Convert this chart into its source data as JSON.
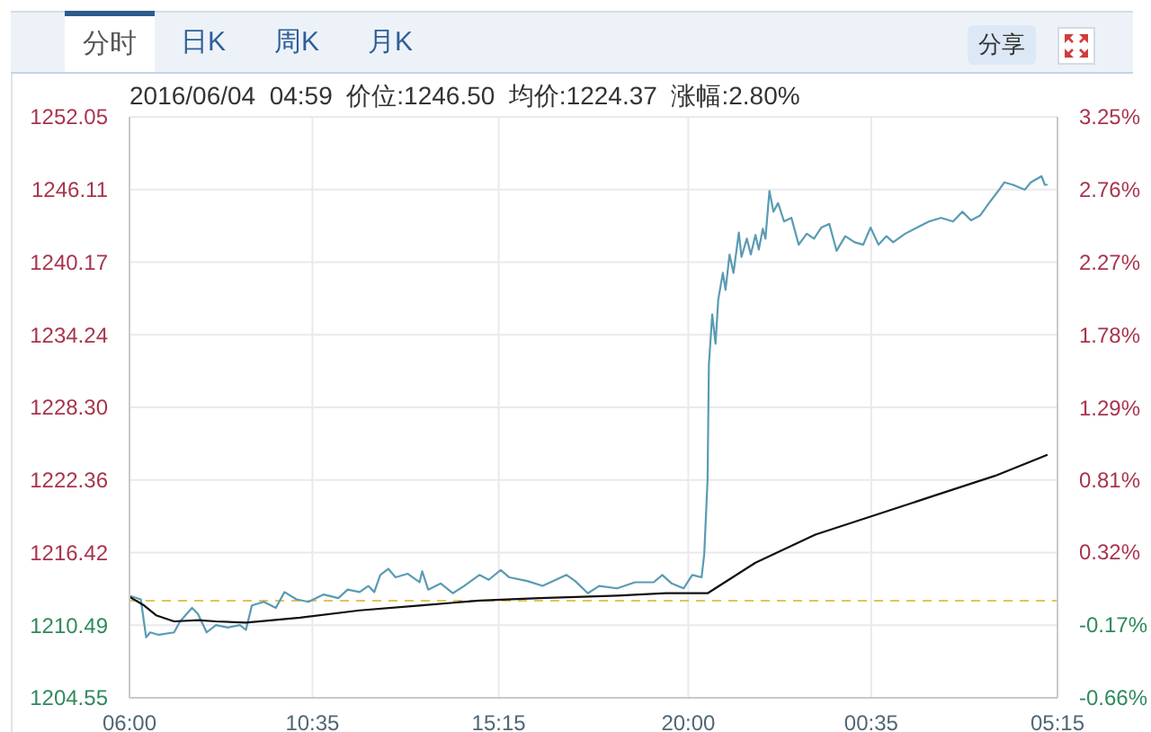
{
  "chart_data": {
    "type": "line",
    "subtitle": "2016/06/04  04:59  价位:1246.50  均价:1224.37  涨幅:2.80%",
    "annotations": [
      "分时",
      "日K",
      "周K",
      "月K",
      "分享"
    ],
    "xlim": [
      "2016-06-03T06:00",
      "2016-06-04T05:15"
    ],
    "xticks": [
      {
        "value": "2016-06-03T06:00",
        "label": "06:00"
      },
      {
        "value": "2016-06-03T10:35",
        "label": "10:35"
      },
      {
        "value": "2016-06-03T15:15",
        "label": "15:15"
      },
      {
        "value": "2016-06-03T20:00",
        "label": "20:00"
      },
      {
        "value": "2016-06-04T00:35",
        "label": "00:35"
      },
      {
        "value": "2016-06-04T05:15",
        "label": "05:15"
      }
    ],
    "ylim": [
      1204.55,
      1252.05
    ],
    "yticks": [
      1204.55,
      1210.49,
      1216.42,
      1222.36,
      {
        "value": 1228.3,
        "label": "1228.30"
      },
      1234.24,
      1240.17,
      1246.11,
      1252.05
    ],
    "y2lim": [
      -0.66,
      3.25
    ],
    "y2ticks": [
      {
        "value": -0.66,
        "label": "-0.66%"
      },
      {
        "value": -0.17,
        "label": "-0.17%"
      },
      {
        "value": 0.32,
        "label": "0.32%"
      },
      {
        "value": 0.81,
        "label": "0.81%"
      },
      {
        "value": 1.29,
        "label": "1.29%"
      },
      {
        "value": 1.78,
        "label": "1.78%"
      },
      {
        "value": 2.27,
        "label": "2.27%"
      },
      {
        "value": 2.76,
        "label": "2.76%"
      },
      {
        "value": 3.25,
        "label": "3.25%"
      }
    ],
    "grid": true,
    "marker": "none",
    "line_style": "solid",
    "ref_lines": [
      {
        "axis": "y",
        "value": 1212.5,
        "color": "#e3c35c",
        "line_style": "dashed"
      }
    ],
    "series": [
      {
        "color": "#5a9bb3",
        "x": [
          "2016-06-03T06:00",
          "2016-06-03T06:17",
          "2016-06-03T06:25",
          "2016-06-03T06:31",
          "2016-06-03T06:44",
          "2016-06-03T07:07",
          "2016-06-03T07:16",
          "2016-06-03T07:34",
          "2016-06-03T07:43",
          "2016-06-03T07:56",
          "2016-06-03T08:10",
          "2016-06-03T08:28",
          "2016-06-03T08:46",
          "2016-06-03T08:55",
          "2016-06-03T09:04",
          "2016-06-03T09:22",
          "2016-06-03T09:40",
          "2016-06-03T09:53",
          "2016-06-03T10:11",
          "2016-06-03T10:29",
          "2016-06-03T10:52",
          "2016-06-03T11:14",
          "2016-06-03T11:28",
          "2016-06-03T11:46",
          "2016-06-03T11:59",
          "2016-06-03T12:08",
          "2016-06-03T12:17",
          "2016-06-03T12:29",
          "2016-06-03T12:40",
          "2016-06-03T12:58",
          "2016-06-03T13:16",
          "2016-06-03T13:20",
          "2016-06-03T13:29",
          "2016-06-03T13:48",
          "2016-06-03T14:06",
          "2016-06-03T14:23",
          "2016-06-03T14:46",
          "2016-06-03T15:00",
          "2016-06-03T15:18",
          "2016-06-03T15:31",
          "2016-06-03T15:58",
          "2016-06-03T16:21",
          "2016-06-03T16:57",
          "2016-06-03T17:10",
          "2016-06-03T17:29",
          "2016-06-03T17:46",
          "2016-06-03T18:13",
          "2016-06-03T18:40",
          "2016-06-03T19:08",
          "2016-06-03T19:21",
          "2016-06-03T19:35",
          "2016-06-03T19:53",
          "2016-06-03T20:06",
          "2016-06-03T20:20",
          "2016-06-03T20:24",
          "2016-06-03T20:29",
          "2016-06-03T20:31",
          "2016-06-03T20:36",
          "2016-06-03T20:41",
          "2016-06-03T20:45",
          "2016-06-03T20:52",
          "2016-06-03T20:56",
          "2016-06-03T21:02",
          "2016-06-03T21:08",
          "2016-06-03T21:16",
          "2016-06-03T21:20",
          "2016-06-03T21:28",
          "2016-06-03T21:34",
          "2016-06-03T21:41",
          "2016-06-03T21:46",
          "2016-06-03T21:52",
          "2016-06-03T21:56",
          "2016-06-03T22:02",
          "2016-06-03T22:08",
          "2016-06-03T22:15",
          "2016-06-03T22:24",
          "2016-06-03T22:35",
          "2016-06-03T22:46",
          "2016-06-03T22:58",
          "2016-06-03T23:09",
          "2016-06-03T23:20",
          "2016-06-03T23:32",
          "2016-06-03T23:43",
          "2016-06-03T23:56",
          "2016-06-04T00:10",
          "2016-06-04T00:23",
          "2016-06-04T00:34",
          "2016-06-04T00:46",
          "2016-06-04T00:58",
          "2016-06-04T01:08",
          "2016-06-04T01:26",
          "2016-06-04T01:44",
          "2016-06-04T02:02",
          "2016-06-04T02:20",
          "2016-06-04T02:38",
          "2016-06-04T02:52",
          "2016-06-04T03:05",
          "2016-06-04T03:19",
          "2016-06-04T03:32",
          "2016-06-04T03:46",
          "2016-06-04T03:55",
          "2016-06-04T04:08",
          "2016-06-04T04:26",
          "2016-06-04T04:35",
          "2016-06-04T04:51",
          "2016-06-04T04:56",
          "2016-06-04T04:59"
        ],
        "values": [
          1212.9,
          1212.6,
          1209.5,
          1209.9,
          1209.7,
          1209.9,
          1210.8,
          1211.9,
          1211.4,
          1209.9,
          1210.5,
          1210.3,
          1210.5,
          1210.1,
          1212.1,
          1212.4,
          1211.9,
          1213.2,
          1212.6,
          1212.4,
          1213.0,
          1212.7,
          1213.4,
          1213.2,
          1213.7,
          1213.2,
          1214.6,
          1215.1,
          1214.4,
          1214.7,
          1214.0,
          1214.9,
          1213.4,
          1213.9,
          1213.1,
          1213.7,
          1214.6,
          1214.2,
          1215.0,
          1214.4,
          1214.1,
          1213.7,
          1214.6,
          1214.1,
          1213.1,
          1213.7,
          1213.5,
          1214.0,
          1214.0,
          1214.6,
          1213.9,
          1213.5,
          1214.6,
          1214.4,
          1216.3,
          1222.4,
          1231.8,
          1235.9,
          1233.5,
          1237.1,
          1239.3,
          1237.9,
          1240.8,
          1239.3,
          1242.6,
          1240.6,
          1242.1,
          1240.8,
          1242.4,
          1241.2,
          1242.9,
          1242.1,
          1246.0,
          1244.3,
          1245.0,
          1243.5,
          1243.8,
          1241.6,
          1242.5,
          1242.1,
          1243.0,
          1243.3,
          1241.1,
          1242.3,
          1241.8,
          1241.6,
          1243.0,
          1241.6,
          1242.3,
          1241.8,
          1242.5,
          1243.0,
          1243.5,
          1243.8,
          1243.5,
          1244.3,
          1243.6,
          1244.0,
          1245.0,
          1246.0,
          1246.7,
          1246.5,
          1246.1,
          1246.7,
          1247.2,
          1246.5,
          1246.5
        ]
      },
      {
        "color": "#111111",
        "x": [
          "2016-06-03T06:00",
          "2016-06-03T06:22",
          "2016-06-03T06:40",
          "2016-06-03T07:07",
          "2016-06-03T07:43",
          "2016-06-03T08:10",
          "2016-06-03T08:55",
          "2016-06-03T10:16",
          "2016-06-03T11:46",
          "2016-06-03T13:16",
          "2016-06-03T14:46",
          "2016-06-03T16:16",
          "2016-06-03T17:10",
          "2016-06-03T18:13",
          "2016-06-03T19:26",
          "2016-06-03T20:29",
          "2016-06-03T21:41",
          "2016-06-03T23:11",
          "2016-06-04T00:41",
          "2016-06-04T02:11",
          "2016-06-04T03:41",
          "2016-06-04T04:59"
        ],
        "values": [
          1212.8,
          1212.1,
          1211.3,
          1210.8,
          1210.9,
          1210.8,
          1210.7,
          1211.1,
          1211.7,
          1212.1,
          1212.5,
          1212.7,
          1212.8,
          1212.9,
          1213.1,
          1213.1,
          1215.6,
          1217.9,
          1219.5,
          1221.1,
          1222.7,
          1224.4
        ]
      }
    ]
  }
}
